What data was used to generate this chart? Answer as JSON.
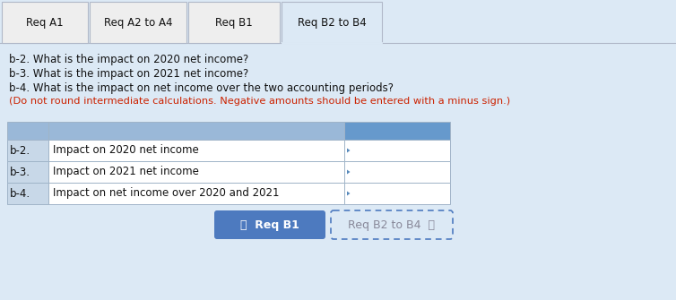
{
  "tabs": [
    "Req A1",
    "Req A2 to A4",
    "Req B1",
    "Req B2 to B4"
  ],
  "active_tab": 3,
  "question_lines": [
    "b-2. What is the impact on 2020 net income?",
    "b-3. What is the impact on 2021 net income?",
    "b-4. What is the impact on net income over the two accounting periods?"
  ],
  "note_line": "(Do not round intermediate calculations. Negative amounts should be entered with a minus sign.)",
  "table_rows": [
    [
      "b-2.",
      "Impact on 2020 net income"
    ],
    [
      "b-3.",
      "Impact on 2021 net income"
    ],
    [
      "b-4.",
      "Impact on net income over 2020 and 2021"
    ]
  ],
  "nav_left": "〈  Req B1",
  "nav_right": "Req B2 to B4  〉",
  "bg_color": "#dce9f5",
  "tab_bg_inactive": "#eeeeee",
  "tab_bg_active": "#dce9f5",
  "tab_border": "#b0b8c8",
  "table_header_col0": "#9ab8d8",
  "table_header_col1": "#9ab8d8",
  "table_header_col2": "#6699cc",
  "table_row_white": "#ffffff",
  "table_row_col0": "#c8d8e8",
  "table_border": "#a0b4c8",
  "nav_left_bg": "#4d7abf",
  "nav_right_bg": "#dce9f5",
  "nav_right_border": "#4d7abf",
  "text_dark": "#111111",
  "text_red": "#cc2200",
  "text_white": "#ffffff",
  "text_nav_right": "#888899"
}
